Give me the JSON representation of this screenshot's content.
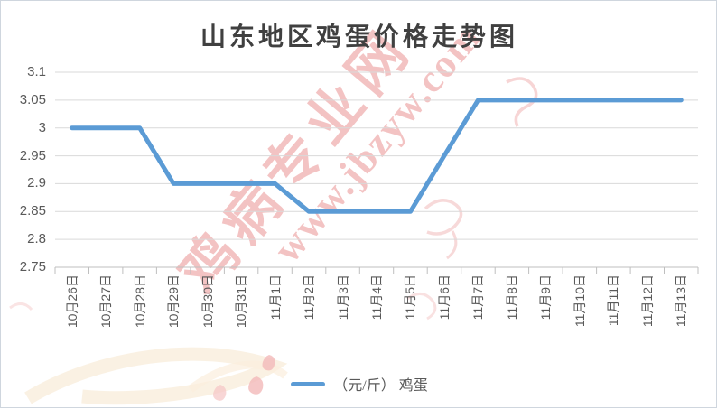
{
  "title": "山东地区鸡蛋价格走势图",
  "legend": {
    "label": "（元/斤） 鸡蛋"
  },
  "watermark": {
    "line1": "鸡病专业网",
    "line2": "www.jbzyw.com"
  },
  "colors": {
    "line": "#5B9BD5",
    "grid": "#D9D9D9",
    "axis": "#BFBFBF",
    "axis_text": "#595959",
    "title_text": "#404040",
    "watermark": "#E88787"
  },
  "chart_data": {
    "type": "line",
    "title": "山东地区鸡蛋价格走势图",
    "categories": [
      "10月26日",
      "10月27日",
      "10月28日",
      "10月29日",
      "10月30日",
      "10月31日",
      "11月1日",
      "11月2日",
      "11月3日",
      "11月4日",
      "11月5日",
      "11月6日",
      "11月7日",
      "11月8日",
      "11月9日",
      "11月10日",
      "11月11日",
      "11月12日",
      "11月13日"
    ],
    "series": [
      {
        "name": "（元/斤） 鸡蛋",
        "values": [
          3,
          3,
          3,
          2.9,
          2.9,
          2.9,
          2.9,
          2.85,
          2.85,
          2.85,
          2.85,
          2.95,
          3.05,
          3.05,
          3.05,
          3.05,
          3.05,
          3.05,
          3.05
        ]
      }
    ],
    "ylim": [
      2.75,
      3.1
    ],
    "y_tick_labels": [
      "3.1",
      "3.05",
      "3",
      "2.95",
      "2.9",
      "2.85",
      "2.8",
      "2.75"
    ],
    "grid": "horizontal",
    "legend_position": "bottom"
  }
}
